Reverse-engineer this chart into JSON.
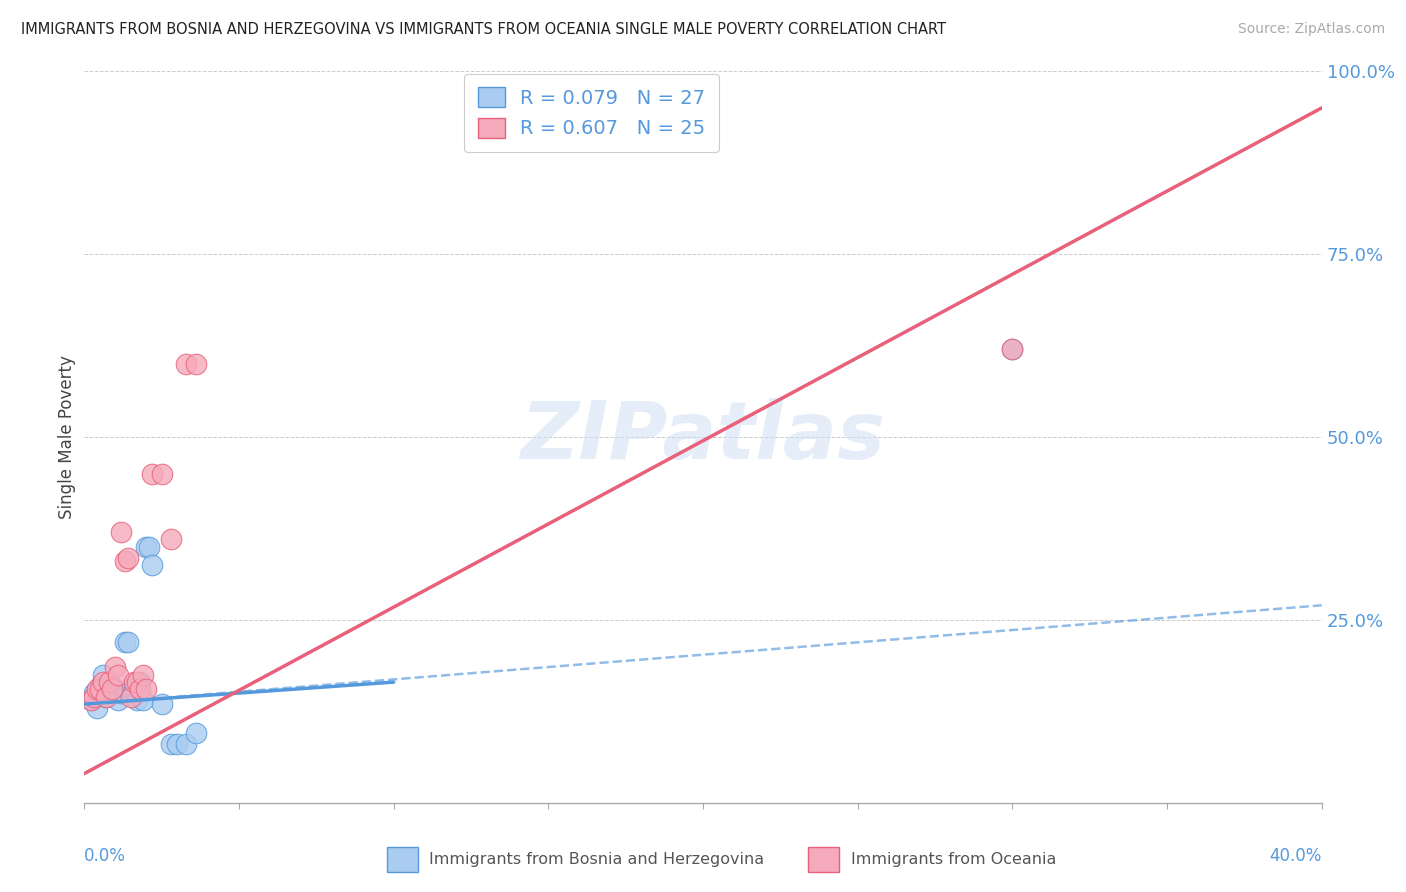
{
  "title": "IMMIGRANTS FROM BOSNIA AND HERZEGOVINA VS IMMIGRANTS FROM OCEANIA SINGLE MALE POVERTY CORRELATION CHART",
  "source": "Source: ZipAtlas.com",
  "ylabel": "Single Male Poverty",
  "yticks": [
    0.0,
    0.25,
    0.5,
    0.75,
    1.0
  ],
  "ytick_labels": [
    "",
    "25.0%",
    "50.0%",
    "75.0%",
    "100.0%"
  ],
  "xlim": [
    0.0,
    0.4
  ],
  "ylim": [
    0.0,
    1.0
  ],
  "bosnia_R": 0.079,
  "bosnia_N": 27,
  "oceania_R": 0.607,
  "oceania_N": 25,
  "bosnia_color": "#aaccf0",
  "oceania_color": "#f5aabb",
  "bosnia_line_color": "#5599dd",
  "oceania_line_color": "#e8607a",
  "bosnia_scatter_x": [
    0.002,
    0.003,
    0.004,
    0.005,
    0.006,
    0.007,
    0.008,
    0.009,
    0.01,
    0.011,
    0.012,
    0.013,
    0.014,
    0.015,
    0.016,
    0.017,
    0.018,
    0.019,
    0.02,
    0.021,
    0.022,
    0.025,
    0.028,
    0.03,
    0.033,
    0.036,
    0.3
  ],
  "bosnia_scatter_y": [
    0.14,
    0.15,
    0.13,
    0.16,
    0.175,
    0.145,
    0.155,
    0.15,
    0.155,
    0.14,
    0.15,
    0.22,
    0.22,
    0.155,
    0.155,
    0.14,
    0.165,
    0.14,
    0.35,
    0.35,
    0.325,
    0.135,
    0.08,
    0.08,
    0.08,
    0.095,
    0.62
  ],
  "oceania_scatter_x": [
    0.002,
    0.003,
    0.004,
    0.005,
    0.006,
    0.007,
    0.008,
    0.009,
    0.01,
    0.011,
    0.012,
    0.013,
    0.014,
    0.015,
    0.016,
    0.017,
    0.018,
    0.019,
    0.02,
    0.022,
    0.025,
    0.028,
    0.033,
    0.036,
    0.3
  ],
  "oceania_scatter_y": [
    0.14,
    0.145,
    0.155,
    0.155,
    0.165,
    0.145,
    0.165,
    0.155,
    0.185,
    0.175,
    0.37,
    0.33,
    0.335,
    0.145,
    0.165,
    0.165,
    0.155,
    0.175,
    0.155,
    0.45,
    0.45,
    0.36,
    0.6,
    0.6,
    0.62
  ],
  "bosnia_line_x0": 0.0,
  "bosnia_line_y0": 0.135,
  "bosnia_line_x1": 0.1,
  "bosnia_line_y1": 0.165,
  "dashed_line_x0": 0.0,
  "dashed_line_y0": 0.135,
  "dashed_line_x1": 0.4,
  "dashed_line_y1": 0.27,
  "oceania_line_x0": 0.0,
  "oceania_line_y0": 0.04,
  "oceania_line_x1": 0.4,
  "oceania_line_y1": 0.95,
  "watermark": "ZIPatlas",
  "background_color": "#ffffff",
  "grid_color": "#cccccc",
  "legend_label1": "R = 0.079   N = 27",
  "legend_label2": "R = 0.607   N = 25",
  "bottom_label1": "Immigrants from Bosnia and Herzegovina",
  "bottom_label2": "Immigrants from Oceania"
}
